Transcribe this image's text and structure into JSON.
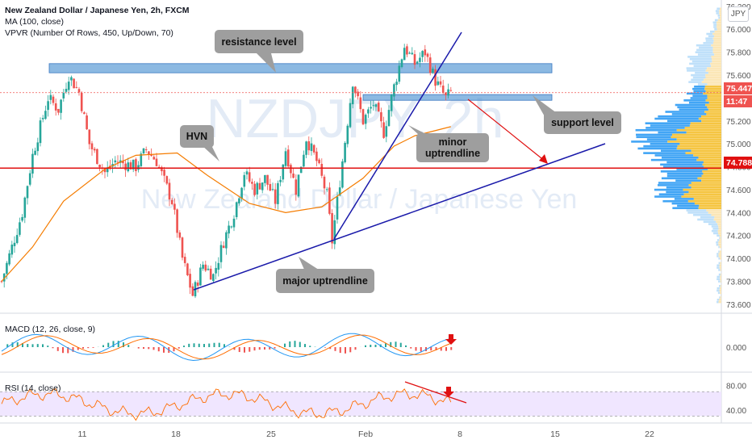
{
  "legend": {
    "title": "New Zealand Dollar / Japanese Yen, 2h, FXCM",
    "ma": "MA (100, close)",
    "vpvr": "VPVR (Number Of Rows, 450, Up/Down, 70)",
    "macd": "MACD (12, 26, close, 9)",
    "rsi": "RSI (14, close)"
  },
  "watermark": {
    "symbol": "NZDJPY, 2h",
    "name": "New Zealand Dollar / Japanese Yen"
  },
  "currency_badge": "JPY",
  "price_tags": {
    "last_price": "75.447",
    "countdown": "11:47",
    "horizontal_line": "74.788"
  },
  "annotations": {
    "resistance": "resistance level",
    "support": "support level",
    "hvn": "HVN",
    "minor_line1": "minor",
    "minor_line2": "uptrendline",
    "major": "major uptrendline"
  },
  "colors": {
    "up_candle": "#26a69a",
    "down_candle": "#ef5350",
    "ma_line": "#f57c00",
    "trendline": "#1a1aaa",
    "hline": "#e01010",
    "zone": "#5b9bd5",
    "vpvr_up": "#f5c542",
    "vpvr_down": "#42a5f5",
    "rsi_band": "#f0e6ff"
  },
  "chart_data": [
    {
      "type": "candlestick",
      "title": "New Zealand Dollar / Japanese Yen, 2h, FXCM",
      "x_ticks": [
        "11",
        "18",
        "25",
        "Feb",
        "8",
        "15",
        "22"
      ],
      "y_ticks": [
        "76.200",
        "76.000",
        "75.800",
        "75.600",
        "75.400",
        "75.200",
        "75.000",
        "74.800",
        "74.600",
        "74.400",
        "74.200",
        "74.000",
        "73.800",
        "73.600"
      ],
      "ylim": [
        73.55,
        76.22
      ],
      "price_path": [
        {
          "x": 0,
          "y": 73.8
        },
        {
          "x": 4,
          "y": 74.4
        },
        {
          "x": 6,
          "y": 74.9
        },
        {
          "x": 9,
          "y": 75.4
        },
        {
          "x": 11,
          "y": 75.3
        },
        {
          "x": 13,
          "y": 75.6
        },
        {
          "x": 15,
          "y": 75.45
        },
        {
          "x": 17,
          "y": 75.0
        },
        {
          "x": 20,
          "y": 74.75
        },
        {
          "x": 22,
          "y": 74.85
        },
        {
          "x": 26,
          "y": 74.8
        },
        {
          "x": 28,
          "y": 74.95
        },
        {
          "x": 30,
          "y": 74.85
        },
        {
          "x": 33,
          "y": 74.5
        },
        {
          "x": 35,
          "y": 74.0
        },
        {
          "x": 37,
          "y": 73.68
        },
        {
          "x": 39,
          "y": 73.95
        },
        {
          "x": 41,
          "y": 73.85
        },
        {
          "x": 43,
          "y": 74.15
        },
        {
          "x": 45,
          "y": 74.4
        },
        {
          "x": 47,
          "y": 74.75
        },
        {
          "x": 49,
          "y": 74.6
        },
        {
          "x": 51,
          "y": 74.7
        },
        {
          "x": 53,
          "y": 74.5
        },
        {
          "x": 55,
          "y": 74.95
        },
        {
          "x": 57,
          "y": 74.6
        },
        {
          "x": 59,
          "y": 75.05
        },
        {
          "x": 61,
          "y": 74.85
        },
        {
          "x": 63,
          "y": 74.55
        },
        {
          "x": 64,
          "y": 74.15
        },
        {
          "x": 66,
          "y": 74.85
        },
        {
          "x": 68,
          "y": 75.55
        },
        {
          "x": 70,
          "y": 75.2
        },
        {
          "x": 72,
          "y": 75.35
        },
        {
          "x": 74,
          "y": 75.1
        },
        {
          "x": 76,
          "y": 75.5
        },
        {
          "x": 78,
          "y": 75.85
        },
        {
          "x": 80,
          "y": 75.7
        },
        {
          "x": 82,
          "y": 75.8
        },
        {
          "x": 84,
          "y": 75.55
        },
        {
          "x": 86,
          "y": 75.4
        },
        {
          "x": 87,
          "y": 75.45
        }
      ],
      "ma_100": [
        {
          "x": 0,
          "y": 73.8
        },
        {
          "x": 6,
          "y": 74.1
        },
        {
          "x": 12,
          "y": 74.5
        },
        {
          "x": 20,
          "y": 74.78
        },
        {
          "x": 26,
          "y": 74.9
        },
        {
          "x": 34,
          "y": 74.92
        },
        {
          "x": 40,
          "y": 74.72
        },
        {
          "x": 48,
          "y": 74.48
        },
        {
          "x": 55,
          "y": 74.4
        },
        {
          "x": 62,
          "y": 74.45
        },
        {
          "x": 70,
          "y": 74.7
        },
        {
          "x": 76,
          "y": 74.98
        },
        {
          "x": 80,
          "y": 75.07
        },
        {
          "x": 87,
          "y": 75.15
        }
      ],
      "resistance_zone": [
        75.62,
        75.7
      ],
      "support_zone": [
        75.38,
        75.43
      ],
      "horizontal_line": 74.788,
      "last_price": 75.447
    },
    {
      "type": "line",
      "title": "MACD (12, 26, close, 9)",
      "y_ticks": [
        "0.000"
      ]
    },
    {
      "type": "line",
      "title": "RSI (14, close)",
      "y_ticks": [
        "80.00",
        "40.00"
      ],
      "ylim": [
        20,
        90
      ]
    }
  ]
}
